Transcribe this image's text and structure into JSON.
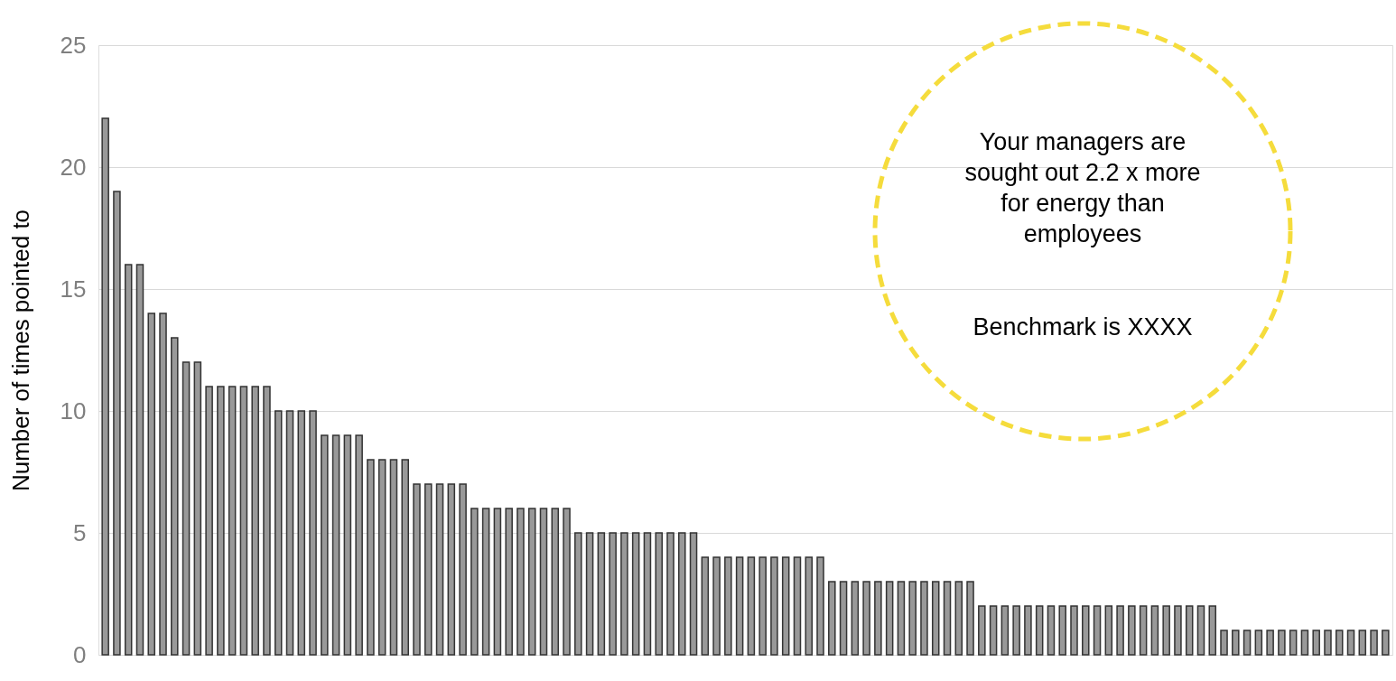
{
  "chart_data": {
    "type": "bar",
    "ylabel": "Number of times pointed to",
    "categories": [
      null,
      null,
      null,
      null,
      null,
      null,
      null,
      null,
      null,
      null,
      null,
      null,
      null,
      null,
      null,
      null,
      null,
      null,
      null,
      null,
      null,
      null,
      null,
      null,
      null,
      null,
      null,
      null,
      null,
      null,
      null,
      null,
      null,
      null,
      null,
      null,
      null,
      null,
      null,
      null,
      null,
      null,
      null,
      null,
      null,
      null,
      null,
      null,
      null,
      null,
      null,
      null,
      null,
      null,
      null,
      null,
      null,
      null,
      null,
      null,
      null,
      null,
      null,
      null,
      null,
      null,
      null,
      null,
      null,
      null,
      null,
      null,
      null,
      null,
      null,
      null,
      null,
      null,
      null,
      null,
      null,
      null,
      null,
      null,
      null,
      null,
      null,
      null,
      null,
      null,
      null,
      null,
      null,
      null,
      null,
      null,
      null,
      null,
      null,
      null,
      null,
      null,
      null,
      null,
      null,
      null,
      null,
      null,
      null,
      null,
      null,
      null
    ],
    "values": [
      22,
      19,
      16,
      16,
      14,
      14,
      13,
      12,
      12,
      11,
      11,
      11,
      11,
      11,
      11,
      10,
      10,
      10,
      10,
      9,
      9,
      9,
      9,
      8,
      8,
      8,
      8,
      7,
      7,
      7,
      7,
      7,
      6,
      6,
      6,
      6,
      6,
      6,
      6,
      6,
      6,
      5,
      5,
      5,
      5,
      5,
      5,
      5,
      5,
      5,
      5,
      5,
      4,
      4,
      4,
      4,
      4,
      4,
      4,
      4,
      4,
      4,
      4,
      3,
      3,
      3,
      3,
      3,
      3,
      3,
      3,
      3,
      3,
      3,
      3,
      3,
      2,
      2,
      2,
      2,
      2,
      2,
      2,
      2,
      2,
      2,
      2,
      2,
      2,
      2,
      2,
      2,
      2,
      2,
      2,
      2,
      2,
      1,
      1,
      1,
      1,
      1,
      1,
      1,
      1,
      1,
      1,
      1,
      1,
      1,
      1,
      1
    ],
    "color": "#999999",
    "ylim": [
      0,
      25
    ],
    "yticks": [
      0,
      5,
      10,
      15,
      20,
      25
    ],
    "grid": "y",
    "tick_labels": "y",
    "annotations": [
      "Your managers are\nsought out 2.2 x  more\nfor energy than\nemployees",
      "Benchmark is XXXX"
    ]
  }
}
